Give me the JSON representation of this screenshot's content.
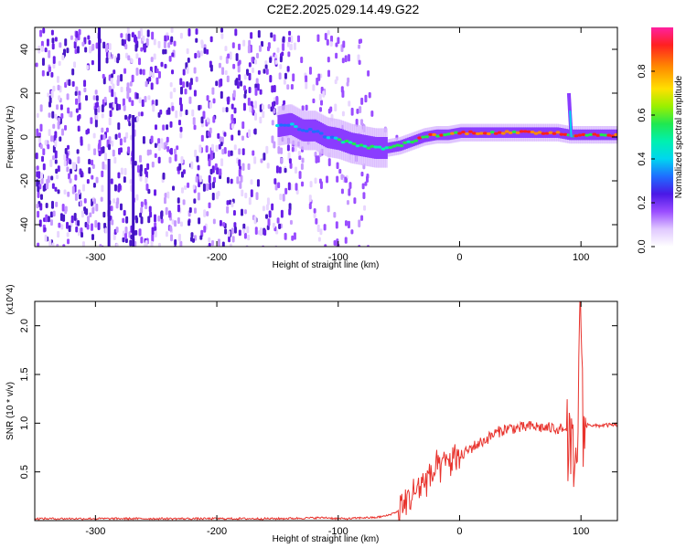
{
  "title": "C2E2.2025.029.14.49.G22",
  "chart_data": [
    {
      "type": "heatmap",
      "xlabel": "Height of straight line (km)",
      "ylabel": "Frequency (Hz)",
      "xlim": [
        -350,
        130
      ],
      "ylim": [
        -50,
        50
      ],
      "xticks": [
        -300,
        -200,
        -100,
        0,
        100
      ],
      "yticks": [
        -40,
        -20,
        0,
        20,
        40
      ],
      "colorbar": {
        "label": "Normalized spectral amplitude",
        "range": [
          0,
          1
        ],
        "ticks": [
          0.0,
          0.2,
          0.4,
          0.6,
          0.8
        ]
      },
      "signal_track": {
        "x": [
          -150,
          -140,
          -130,
          -120,
          -110,
          -100,
          -90,
          -80,
          -70,
          -60,
          -50,
          -40,
          -30,
          -20,
          -10,
          0,
          20,
          40,
          60,
          80,
          90,
          95,
          100,
          110,
          130
        ],
        "y": [
          5,
          6,
          3,
          3,
          0,
          -1,
          -3,
          -4,
          -5,
          -5,
          -4,
          -2,
          0,
          1,
          1,
          2,
          2,
          2,
          2,
          2,
          1,
          1,
          1,
          1,
          1
        ]
      },
      "spike": {
        "x": 92,
        "y": [
          0,
          20
        ]
      }
    },
    {
      "type": "line",
      "xlabel": "Height of straight line (km)",
      "ylabel": "SNR (10 * v/v)",
      "yscale_label": "(x10^4)",
      "xlim": [
        -350,
        130
      ],
      "ylim": [
        0,
        2.25
      ],
      "xticks": [
        -300,
        -200,
        -100,
        0,
        100
      ],
      "yticks": [
        0.5,
        1.0,
        1.5,
        2.0
      ],
      "series": [
        {
          "color": "#e8332d",
          "x": [
            -350,
            -300,
            -250,
            -200,
            -150,
            -110,
            -100,
            -90,
            -80,
            -70,
            -60,
            -50,
            -40,
            -30,
            -20,
            -10,
            0,
            10,
            20,
            30,
            40,
            50,
            60,
            70,
            80,
            88,
            92,
            96,
            98,
            100,
            102,
            106,
            110,
            120,
            130
          ],
          "y": [
            0.02,
            0.02,
            0.02,
            0.02,
            0.02,
            0.03,
            0.02,
            0.02,
            0.03,
            0.03,
            0.05,
            0.1,
            0.25,
            0.4,
            0.5,
            0.6,
            0.65,
            0.75,
            0.82,
            0.9,
            0.95,
            0.95,
            0.97,
            0.95,
            0.95,
            0.93,
            0.6,
            0.4,
            1.4,
            2.2,
            0.9,
            1.0,
            0.97,
            0.98,
            0.98
          ]
        }
      ]
    }
  ]
}
